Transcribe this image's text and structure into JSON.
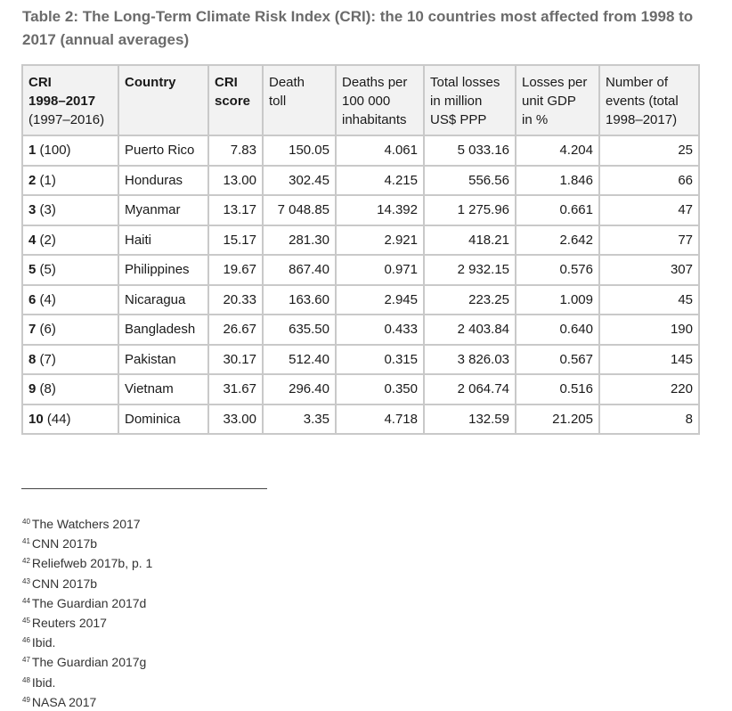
{
  "caption": "Table 2: The Long-Term Climate Risk Index (CRI): the 10 countries most affected from 1998 to 2017 (annual averages)",
  "table": {
    "headers": [
      {
        "lines": [
          "CRI",
          "1998–2017",
          "(1997–2016)"
        ],
        "bold_lines": 2
      },
      {
        "lines": [
          "Country"
        ],
        "bold_lines": 1
      },
      {
        "lines": [
          "CRI",
          "score"
        ],
        "bold_lines": 2
      },
      {
        "lines": [
          "Death",
          "toll"
        ],
        "bold_lines": 0
      },
      {
        "lines": [
          "Deaths per",
          "100 000",
          "inhabitants"
        ],
        "bold_lines": 0
      },
      {
        "lines": [
          "Total losses",
          "in million",
          "US$ PPP"
        ],
        "bold_lines": 0
      },
      {
        "lines": [
          "Losses per",
          "unit GDP",
          "in %"
        ],
        "bold_lines": 0
      },
      {
        "lines": [
          "Number of",
          "events (total",
          "1998–2017)"
        ],
        "bold_lines": 0
      }
    ],
    "rows": [
      {
        "rank": "1",
        "prev": "(100)",
        "country": "Puerto Rico",
        "score": "7.83",
        "deaths": "150.05",
        "deaths_per_100k": "4.061",
        "losses": "5 033.16",
        "losses_gdp": "4.204",
        "events": "25"
      },
      {
        "rank": "2",
        "prev": "(1)",
        "country": "Honduras",
        "score": "13.00",
        "deaths": "302.45",
        "deaths_per_100k": "4.215",
        "losses": "556.56",
        "losses_gdp": "1.846",
        "events": "66"
      },
      {
        "rank": "3",
        "prev": "(3)",
        "country": "Myanmar",
        "score": "13.17",
        "deaths": "7 048.85",
        "deaths_per_100k": "14.392",
        "losses": "1 275.96",
        "losses_gdp": "0.661",
        "events": "47"
      },
      {
        "rank": "4",
        "prev": "(2)",
        "country": "Haiti",
        "score": "15.17",
        "deaths": "281.30",
        "deaths_per_100k": "2.921",
        "losses": "418.21",
        "losses_gdp": "2.642",
        "events": "77"
      },
      {
        "rank": "5",
        "prev": "(5)",
        "country": "Philippines",
        "score": "19.67",
        "deaths": "867.40",
        "deaths_per_100k": "0.971",
        "losses": "2 932.15",
        "losses_gdp": "0.576",
        "events": "307"
      },
      {
        "rank": "6",
        "prev": "(4)",
        "country": "Nicaragua",
        "score": "20.33",
        "deaths": "163.60",
        "deaths_per_100k": "2.945",
        "losses": "223.25",
        "losses_gdp": "1.009",
        "events": "45"
      },
      {
        "rank": "7",
        "prev": "(6)",
        "country": "Bangladesh",
        "score": "26.67",
        "deaths": "635.50",
        "deaths_per_100k": "0.433",
        "losses": "2 403.84",
        "losses_gdp": "0.640",
        "events": "190"
      },
      {
        "rank": "8",
        "prev": "(7)",
        "country": "Pakistan",
        "score": "30.17",
        "deaths": "512.40",
        "deaths_per_100k": "0.315",
        "losses": "3 826.03",
        "losses_gdp": "0.567",
        "events": "145"
      },
      {
        "rank": "9",
        "prev": "(8)",
        "country": "Vietnam",
        "score": "31.67",
        "deaths": "296.40",
        "deaths_per_100k": "0.350",
        "losses": "2 064.74",
        "losses_gdp": "0.516",
        "events": "220"
      },
      {
        "rank": "10",
        "prev": "(44)",
        "country": "Dominica",
        "score": "33.00",
        "deaths": "3.35",
        "deaths_per_100k": "4.718",
        "losses": "132.59",
        "losses_gdp": "21.205",
        "events": "8"
      }
    ]
  },
  "footnotes": [
    {
      "n": "40",
      "text": "The Watchers 2017"
    },
    {
      "n": "41",
      "text": "CNN 2017b"
    },
    {
      "n": "42",
      "text": "Reliefweb 2017b, p. 1"
    },
    {
      "n": "43",
      "text": "CNN 2017b"
    },
    {
      "n": "44",
      "text": "The Guardian 2017d"
    },
    {
      "n": "45",
      "text": "Reuters 2017"
    },
    {
      "n": "46",
      "text": "Ibid."
    },
    {
      "n": "47",
      "text": "The Guardian 2017g"
    },
    {
      "n": "48",
      "text": "Ibid."
    },
    {
      "n": "49",
      "text": "NASA 2017"
    }
  ]
}
